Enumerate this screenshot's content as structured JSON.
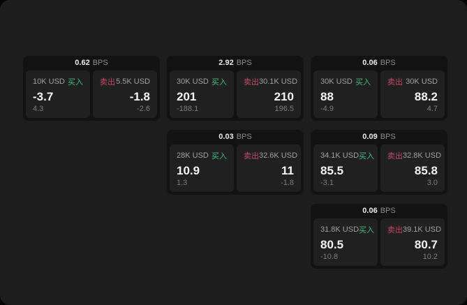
{
  "labels": {
    "bps_unit": "BPS",
    "buy": "买入",
    "sell": "卖出"
  },
  "colors": {
    "buy_green": "#3ebd7c",
    "sell_red": "#cb4767",
    "page_background": "#1d1d1e",
    "card_background": "#121213",
    "panel_background": "#202021"
  },
  "cards": [
    {
      "bps": "0.62",
      "buy": {
        "amount": "10K USD",
        "value": "-3.7",
        "change": "4.3"
      },
      "sell": {
        "amount": "5.5K USD",
        "value": "-1.8",
        "change": "-2.6"
      }
    },
    {
      "bps": "2.92",
      "buy": {
        "amount": "30K USD",
        "value": "201",
        "change": "-188.1"
      },
      "sell": {
        "amount": "30.1K USD",
        "value": "210",
        "change": "196.5"
      }
    },
    {
      "bps": "0.06",
      "buy": {
        "amount": "30K USD",
        "value": "88",
        "change": "-4.9"
      },
      "sell": {
        "amount": "30K USD",
        "value": "88.2",
        "change": "4.7"
      }
    },
    {
      "bps": "0.03",
      "buy": {
        "amount": "28K USD",
        "value": "10.9",
        "change": "1.3"
      },
      "sell": {
        "amount": "32.6K USD",
        "value": "11",
        "change": "-1.8"
      }
    },
    {
      "bps": "0.09",
      "buy": {
        "amount": "34.1K USD",
        "value": "85.5",
        "change": "-3.1"
      },
      "sell": {
        "amount": "32.8K USD",
        "value": "85.8",
        "change": "3.0"
      }
    },
    {
      "bps": "0.06",
      "buy": {
        "amount": "31.8K USD",
        "value": "80.5",
        "change": "-10.8"
      },
      "sell": {
        "amount": "39.1K USD",
        "value": "80.7",
        "change": "10.2"
      }
    }
  ]
}
